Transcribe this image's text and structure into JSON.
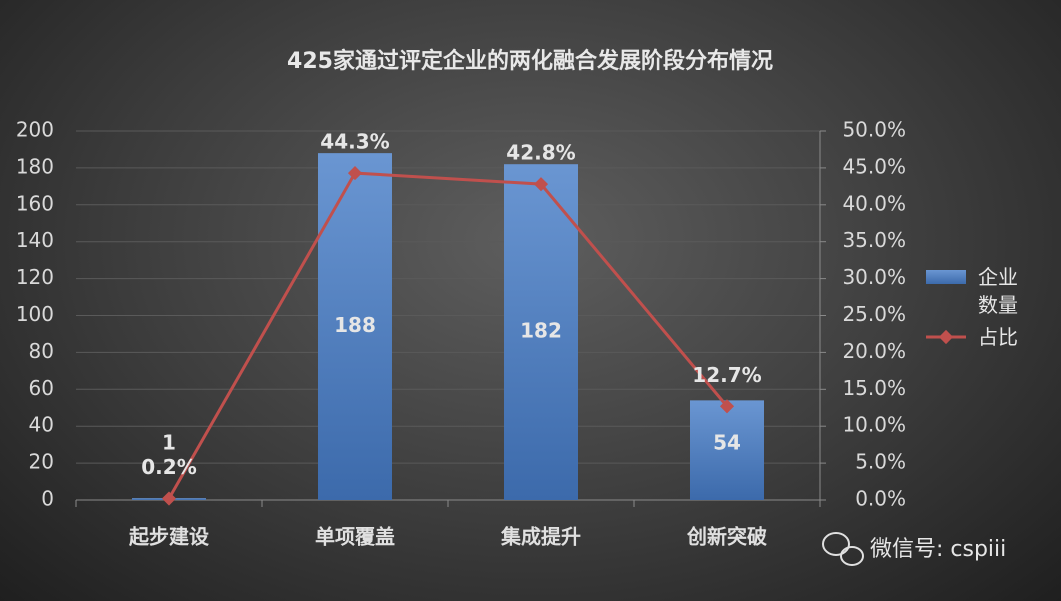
{
  "chart_data": {
    "type": "bar-line",
    "title": "425家通过评定企业的两化融合发展阶段分布情况",
    "categories": [
      "起步建设",
      "单项覆盖",
      "集成提升",
      "创新突破"
    ],
    "series": [
      {
        "name": "企业数量",
        "type": "bar",
        "color": "#4f81bd",
        "values": [
          1,
          188,
          182,
          54
        ]
      },
      {
        "name": "占比",
        "type": "line",
        "axis": "y2",
        "color": "#c0504d",
        "values": [
          0.2,
          44.3,
          42.8,
          12.7
        ],
        "value_labels": [
          "0.2%",
          "44.3%",
          "42.8%",
          "12.7%"
        ]
      }
    ],
    "ylim": [
      0,
      200
    ],
    "yticks": [
      0,
      20,
      40,
      60,
      80,
      100,
      120,
      140,
      160,
      180,
      200
    ],
    "y2lim": [
      0,
      50
    ],
    "y2ticks": [
      {
        "value": 0,
        "label": "0.0%"
      },
      {
        "value": 5,
        "label": "5.0%"
      },
      {
        "value": 10,
        "label": "10.0%"
      },
      {
        "value": 15,
        "label": "15.0%"
      },
      {
        "value": 20,
        "label": "20.0%"
      },
      {
        "value": 25,
        "label": "25.0%"
      },
      {
        "value": 30,
        "label": "30.0%"
      },
      {
        "value": 35,
        "label": "35.0%"
      },
      {
        "value": 40,
        "label": "40.0%"
      },
      {
        "value": 45,
        "label": "45.0%"
      },
      {
        "value": 50,
        "label": "50.0%"
      }
    ],
    "grid": true,
    "legend": "right",
    "watermark": "微信号: cspiii"
  }
}
